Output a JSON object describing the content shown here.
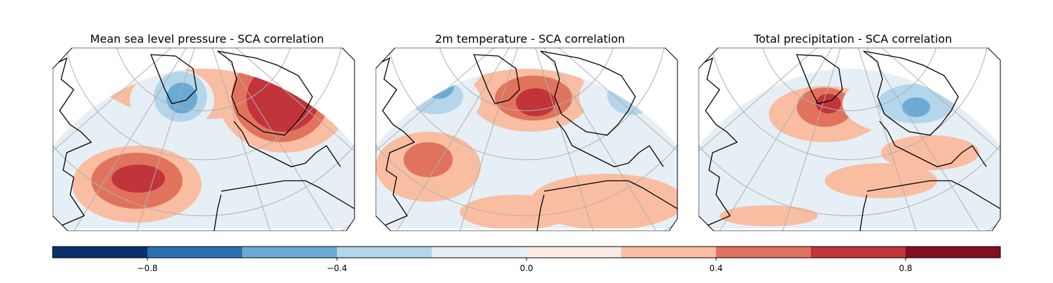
{
  "panels": [
    {
      "title": "Mean sea level pressure - SCA correlation",
      "variable": "msl"
    },
    {
      "title": "2m temperature - SCA correlation",
      "variable": "t2m"
    },
    {
      "title": "Total precipitation - SCA correlation",
      "variable": "tp"
    }
  ],
  "colorbar": {
    "colormap": "RdBu_r",
    "min": -1.0,
    "max": 1.0,
    "levels": [
      -1.0,
      -0.8,
      -0.6,
      -0.4,
      -0.2,
      0.0,
      0.2,
      0.4,
      0.6,
      0.8,
      1.0
    ],
    "colors": [
      "#08306b",
      "#2b6fb1",
      "#6aaad3",
      "#b3d6ea",
      "#e6eff6",
      "#fcebe3",
      "#f9bda2",
      "#e1735c",
      "#c1343a",
      "#840f21"
    ],
    "ticks": [
      {
        "value": -0.8,
        "label": "−0.8"
      },
      {
        "value": -0.4,
        "label": "−0.4"
      },
      {
        "value": 0.0,
        "label": "0.0"
      },
      {
        "value": 0.4,
        "label": "0.4"
      },
      {
        "value": 0.8,
        "label": "0.8"
      }
    ]
  },
  "colors": {
    "ocean_base": "#e6eff6",
    "graticule": "#b0b0b0",
    "coastline": "#000000"
  }
}
